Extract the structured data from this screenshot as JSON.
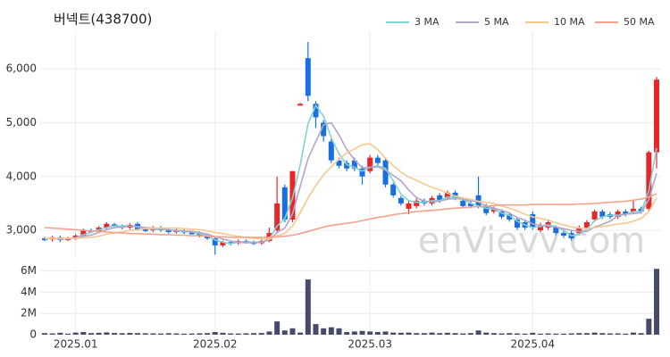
{
  "chart_data": {
    "type": "candlestick",
    "title": "버넥트(438700)",
    "watermark": "enVievv.com",
    "categories": [
      null,
      null,
      null,
      null,
      "2025.01",
      null,
      null,
      null,
      null,
      null,
      null,
      null,
      null,
      null,
      null,
      null,
      null,
      null,
      null,
      null,
      null,
      null,
      "2025.02",
      null,
      null,
      null,
      null,
      null,
      null,
      null,
      null,
      null,
      null,
      null,
      null,
      null,
      null,
      null,
      null,
      null,
      null,
      null,
      "2025.03",
      null,
      null,
      null,
      null,
      null,
      null,
      null,
      null,
      null,
      null,
      null,
      null,
      null,
      null,
      null,
      null,
      null,
      null,
      null,
      null,
      "2025.04",
      null,
      null,
      null,
      null,
      null,
      null,
      null,
      null,
      null,
      null,
      null,
      null,
      null,
      null,
      null,
      null
    ],
    "open": [
      2850,
      2830,
      2870,
      2830,
      2850,
      2900,
      3000,
      2990,
      3050,
      3110,
      3080,
      3050,
      3120,
      3020,
      3000,
      3050,
      3000,
      2970,
      3000,
      2960,
      2950,
      2900,
      2850,
      2720,
      2780,
      2760,
      2800,
      2780,
      2760,
      2800,
      3000,
      3800,
      3200,
      5350,
      6200,
      5350,
      5000,
      4650,
      4300,
      4250,
      4300,
      4150,
      4100,
      4350,
      4300,
      3850,
      3600,
      3400,
      3450,
      3550,
      3500,
      3650,
      3600,
      3700,
      3550,
      3500,
      3650,
      3450,
      3350,
      3350,
      3300,
      3200,
      3150,
      3300,
      3000,
      3050,
      3050,
      2950,
      2950,
      2950,
      3050,
      3200,
      3350,
      3300,
      3250,
      3350,
      3350,
      3400,
      3400,
      4450
    ],
    "high": [
      2880,
      2900,
      2900,
      2880,
      2930,
      3030,
      3030,
      3080,
      3150,
      3140,
      3110,
      3130,
      3150,
      3050,
      3080,
      3080,
      3030,
      3030,
      3030,
      2990,
      2980,
      2930,
      2880,
      2810,
      2810,
      2830,
      2830,
      2810,
      2830,
      3050,
      4000,
      3850,
      4100,
      5370,
      6500,
      5400,
      5050,
      4700,
      4350,
      4300,
      4350,
      4200,
      4400,
      4400,
      4350,
      3880,
      3640,
      3540,
      3590,
      3590,
      3640,
      3690,
      3740,
      3740,
      3590,
      3540,
      4000,
      3490,
      3440,
      3390,
      3340,
      3240,
      3190,
      3350,
      3140,
      3190,
      3090,
      2990,
      2990,
      3090,
      3190,
      3390,
      3390,
      3340,
      3390,
      3390,
      3550,
      3440,
      4480,
      5850
    ],
    "low": [
      2800,
      2790,
      2780,
      2800,
      2820,
      2870,
      2950,
      2960,
      3020,
      3050,
      3020,
      3020,
      2990,
      2970,
      2970,
      2970,
      2940,
      2940,
      2930,
      2920,
      2870,
      2820,
      2550,
      2690,
      2720,
      2730,
      2750,
      2730,
      2730,
      2780,
      2950,
      3150,
      3150,
      5330,
      5400,
      4900,
      4650,
      4250,
      4150,
      4100,
      4100,
      3850,
      4060,
      4200,
      3800,
      3610,
      3460,
      3300,
      3410,
      3460,
      3460,
      3510,
      3560,
      3560,
      3410,
      3410,
      3410,
      3280,
      3310,
      3210,
      3160,
      3010,
      3010,
      3010,
      2960,
      3010,
      2910,
      2860,
      2810,
      2910,
      3010,
      3160,
      3210,
      3210,
      3210,
      3260,
      3310,
      3310,
      3360,
      4150
    ],
    "close": [
      2830,
      2870,
      2820,
      2850,
      2900,
      3000,
      2980,
      3050,
      3120,
      3080,
      3050,
      3100,
      3020,
      3000,
      3050,
      3000,
      2970,
      3000,
      2960,
      2950,
      2900,
      2850,
      2720,
      2780,
      2750,
      2800,
      2780,
      2760,
      2800,
      2950,
      3500,
      3200,
      4100,
      5350,
      5500,
      5100,
      4750,
      4300,
      4200,
      4150,
      4150,
      4000,
      4350,
      4250,
      3850,
      3650,
      3500,
      3500,
      3550,
      3500,
      3600,
      3550,
      3700,
      3600,
      3450,
      3450,
      3450,
      3320,
      3400,
      3250,
      3200,
      3050,
      3050,
      3050,
      3100,
      3150,
      2950,
      2900,
      2850,
      3050,
      3150,
      3350,
      3250,
      3250,
      3350,
      3300,
      3400,
      3350,
      4450,
      5800
    ],
    "up_color": "#e8262a",
    "down_color": "#1a6fe0",
    "ylim": [
      2470,
      6700
    ],
    "yticks": [
      {
        "value": 3000,
        "label": "3,000"
      },
      {
        "value": 4000,
        "label": "4,000"
      },
      {
        "value": 5000,
        "label": "5,000"
      },
      {
        "value": 6000,
        "label": "6,000"
      }
    ],
    "grid": true,
    "series": [
      {
        "name": "3 MA",
        "color": "#7fd3d0",
        "values": [
          2840,
          2850,
          2840,
          2850,
          2860,
          2920,
          2960,
          3010,
          3050,
          3080,
          3080,
          3080,
          3060,
          3040,
          3020,
          3020,
          3010,
          2990,
          2980,
          2970,
          2940,
          2900,
          2820,
          2780,
          2750,
          2780,
          2780,
          2780,
          2780,
          2840,
          3080,
          3220,
          3600,
          4220,
          4980,
          5320,
          5120,
          4720,
          4420,
          4220,
          4170,
          4100,
          4170,
          4200,
          4150,
          3920,
          3670,
          3550,
          3520,
          3520,
          3550,
          3550,
          3620,
          3620,
          3580,
          3500,
          3450,
          3410,
          3390,
          3320,
          3280,
          3170,
          3100,
          3050,
          3070,
          3100,
          3070,
          3000,
          2900,
          2930,
          3020,
          3180,
          3250,
          3280,
          3280,
          3300,
          3350,
          3350,
          3730,
          4530
        ]
      },
      {
        "name": "5 MA",
        "color": "#b3a4cb",
        "values": [
          2840,
          2850,
          2840,
          2840,
          2850,
          2890,
          2910,
          2960,
          3010,
          3050,
          3060,
          3080,
          3070,
          3050,
          3040,
          3030,
          3010,
          3000,
          2990,
          2980,
          2960,
          2930,
          2880,
          2840,
          2800,
          2780,
          2770,
          2770,
          2780,
          2820,
          2960,
          3040,
          3310,
          3820,
          4330,
          4650,
          4960,
          5000,
          4770,
          4500,
          4310,
          4160,
          4170,
          4180,
          4120,
          4020,
          3920,
          3750,
          3610,
          3540,
          3530,
          3540,
          3580,
          3590,
          3580,
          3550,
          3530,
          3450,
          3410,
          3370,
          3320,
          3240,
          3190,
          3120,
          3090,
          3080,
          3060,
          3030,
          3000,
          2980,
          2980,
          3060,
          3110,
          3170,
          3270,
          3300,
          3310,
          3330,
          3570,
          4060
        ]
      },
      {
        "name": "10 MA",
        "color": "#f5c88e",
        "values": [
          2850,
          2850,
          2850,
          2850,
          2850,
          2860,
          2870,
          2890,
          2930,
          2950,
          2970,
          3000,
          3010,
          3030,
          3040,
          3040,
          3040,
          3040,
          3030,
          3020,
          3010,
          2990,
          2960,
          2940,
          2910,
          2890,
          2870,
          2850,
          2840,
          2840,
          2900,
          2940,
          3080,
          3330,
          3600,
          3830,
          4030,
          4180,
          4320,
          4440,
          4510,
          4590,
          4610,
          4500,
          4340,
          4200,
          4080,
          3990,
          3930,
          3860,
          3800,
          3750,
          3690,
          3640,
          3600,
          3580,
          3540,
          3520,
          3500,
          3450,
          3410,
          3360,
          3300,
          3250,
          3220,
          3190,
          3140,
          3100,
          3060,
          3040,
          3030,
          3050,
          3070,
          3090,
          3120,
          3130,
          3170,
          3220,
          3350,
          3600
        ]
      },
      {
        "name": "50 MA",
        "color": "#f4a28c",
        "values": [
          3050,
          3040,
          3030,
          3020,
          3010,
          3000,
          2990,
          2980,
          2970,
          2960,
          2950,
          2940,
          2940,
          2930,
          2930,
          2920,
          2920,
          2910,
          2910,
          2900,
          2900,
          2890,
          2880,
          2880,
          2870,
          2870,
          2870,
          2870,
          2870,
          2870,
          2880,
          2890,
          2910,
          2940,
          2980,
          3020,
          3060,
          3090,
          3110,
          3130,
          3150,
          3180,
          3210,
          3240,
          3260,
          3290,
          3310,
          3330,
          3350,
          3360,
          3370,
          3380,
          3400,
          3410,
          3420,
          3430,
          3440,
          3450,
          3460,
          3470,
          3470,
          3470,
          3470,
          3480,
          3480,
          3480,
          3480,
          3480,
          3480,
          3490,
          3490,
          3500,
          3510,
          3520,
          3530,
          3540,
          3560,
          3580,
          3620,
          3680
        ]
      }
    ],
    "volume": {
      "color": "#474b6b",
      "ylim": [
        0,
        6300000
      ],
      "yticks": [
        0,
        {
          "value": 2000000,
          "label": "2M"
        },
        {
          "value": 4000000,
          "label": "4M"
        },
        {
          "value": 6000000,
          "label": "6M"
        }
      ],
      "values": [
        150000,
        120000,
        180000,
        100000,
        200000,
        250000,
        150000,
        180000,
        220000,
        160000,
        140000,
        170000,
        150000,
        130000,
        120000,
        110000,
        140000,
        120000,
        100000,
        110000,
        130000,
        150000,
        250000,
        180000,
        120000,
        110000,
        130000,
        150000,
        160000,
        300000,
        1250000,
        400000,
        600000,
        200000,
        5200000,
        1000000,
        600000,
        700000,
        600000,
        250000,
        300000,
        350000,
        300000,
        250000,
        300000,
        200000,
        180000,
        200000,
        150000,
        150000,
        200000,
        150000,
        180000,
        150000,
        120000,
        150000,
        400000,
        200000,
        150000,
        120000,
        150000,
        120000,
        100000,
        180000,
        100000,
        120000,
        100000,
        100000,
        120000,
        150000,
        150000,
        200000,
        150000,
        120000,
        120000,
        100000,
        200000,
        150000,
        1500000,
        6200000
      ]
    }
  }
}
